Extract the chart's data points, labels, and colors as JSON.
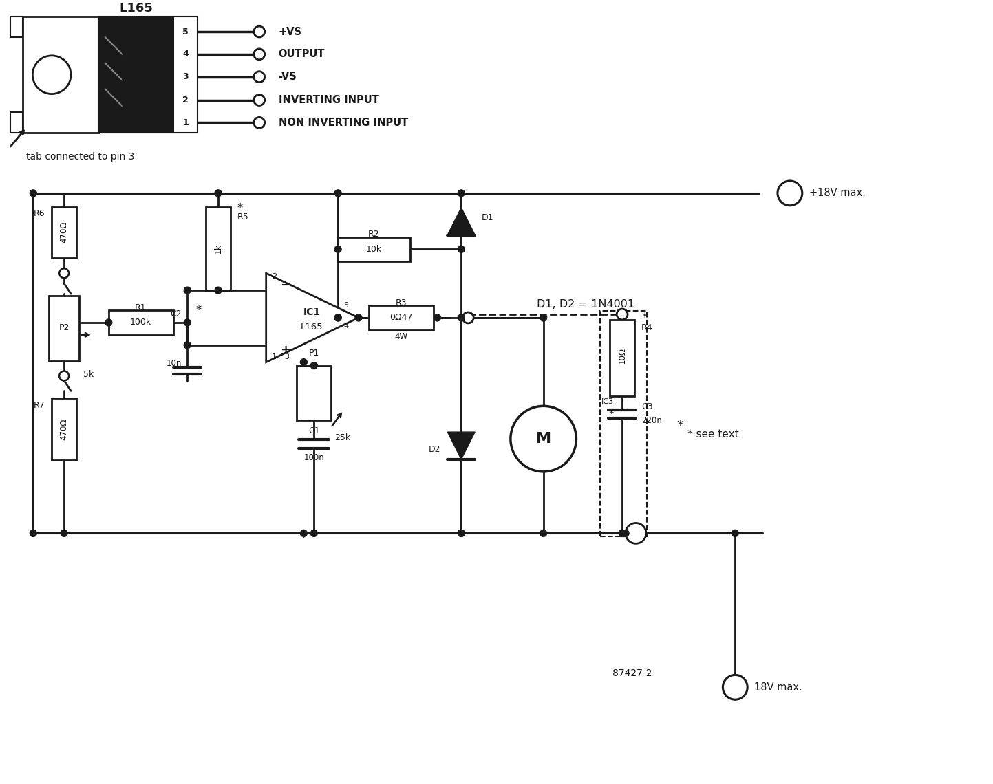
{
  "bg_color": "#ffffff",
  "line_color": "#1a1a1a",
  "pin_labels": [
    "+VS",
    "OUTPUT",
    "-VS",
    "INVERTING INPUT",
    "NON INVERTING INPUT"
  ],
  "pin_numbers": [
    "5",
    "4",
    "3",
    "2",
    "1"
  ],
  "D1D2_note": "D1, D2 = 1N4001",
  "see_text": "* see text",
  "part_no": "87427-2",
  "tab_note": "tab connected to pin 3"
}
